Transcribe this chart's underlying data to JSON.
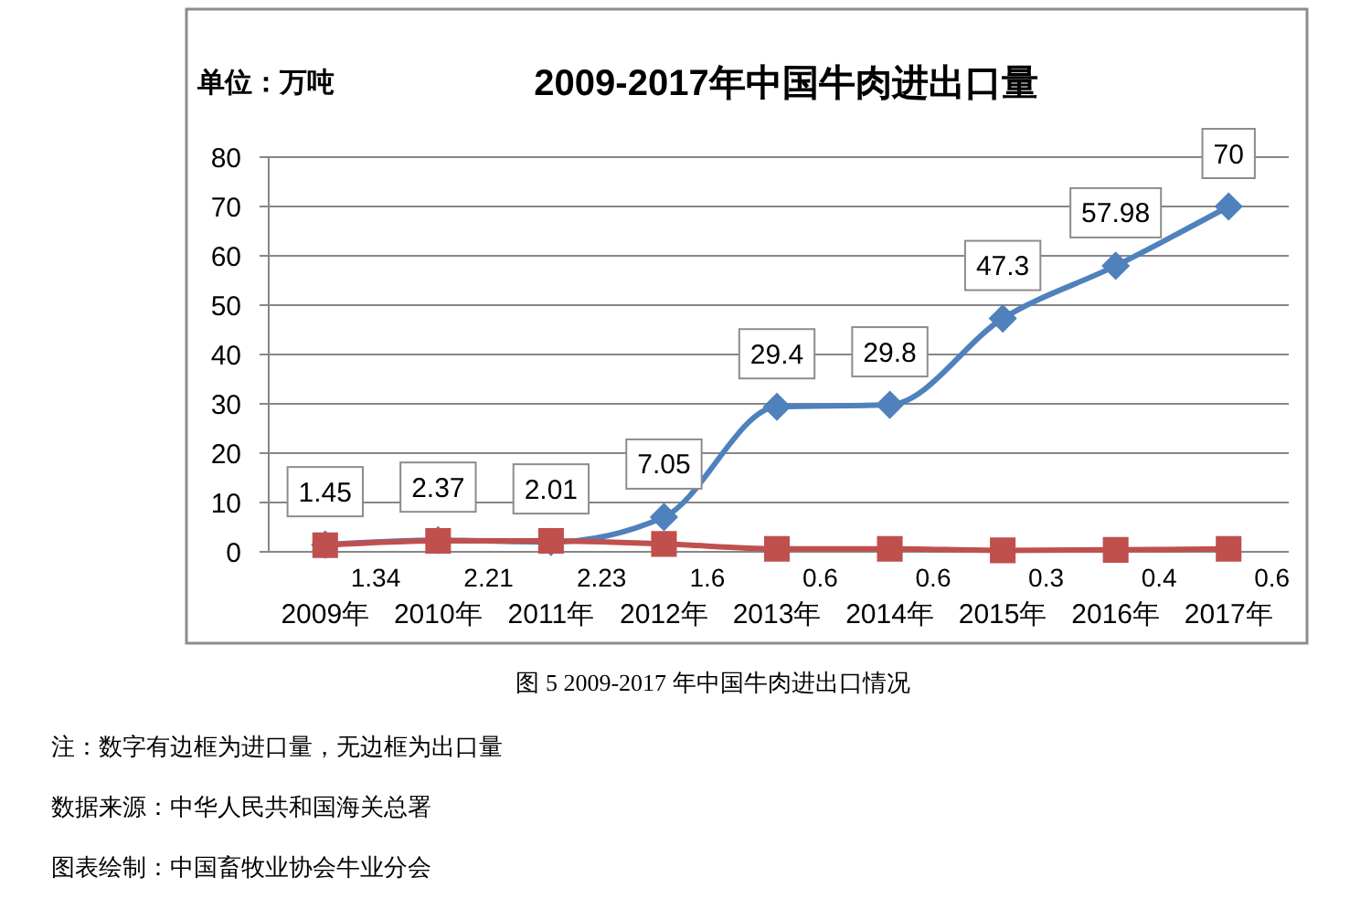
{
  "chart_data": {
    "type": "line",
    "title": "2009-2017年中国牛肉进出口量",
    "ylabel": "单位：万吨",
    "categories": [
      "2009年",
      "2010年",
      "2011年",
      "2012年",
      "2013年",
      "2014年",
      "2015年",
      "2016年",
      "2017年"
    ],
    "series": [
      {
        "color": "#4f81bd",
        "marker": "diamond",
        "values": [
          1.45,
          2.37,
          2.01,
          7.05,
          29.4,
          29.8,
          47.3,
          57.98,
          70
        ]
      },
      {
        "color": "#c0504d",
        "marker": "square",
        "values": [
          1.34,
          2.21,
          2.23,
          1.6,
          0.6,
          0.6,
          0.3,
          0.4,
          0.6
        ]
      }
    ],
    "ylim": [
      0,
      80
    ],
    "yticks": [
      0,
      10,
      20,
      30,
      40,
      50,
      60,
      70,
      80
    ],
    "grid": "y",
    "data_labels": true,
    "annotations": [
      "图 5 2009-2017 年中国牛肉进出口情况",
      "注：数字有边框为进口量，无边框为出口量",
      "数据来源：中华人民共和国海关总署",
      "图表绘制：中国畜牧业协会牛业分会"
    ]
  }
}
